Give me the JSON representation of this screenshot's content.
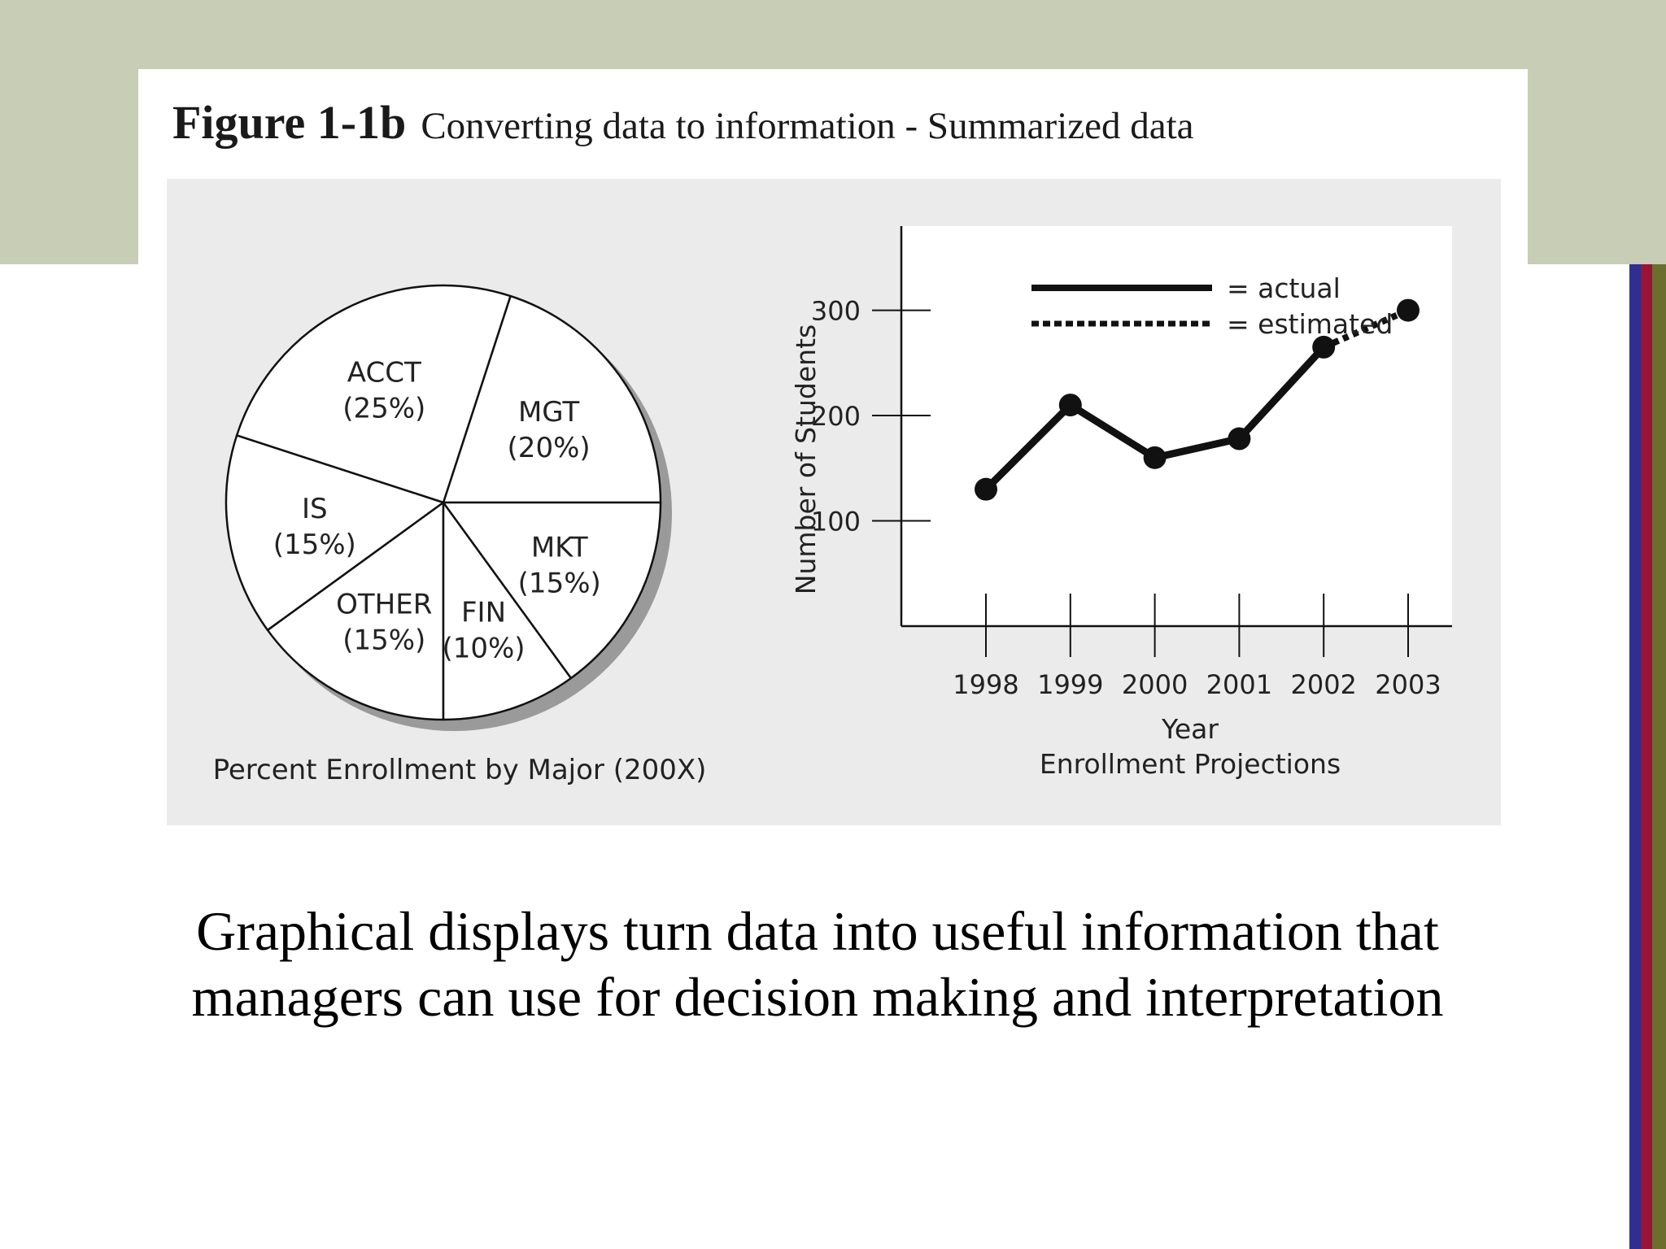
{
  "figure": {
    "number": "Figure 1-1b",
    "caption": "Converting data to information - Summarized data"
  },
  "chart_data": [
    {
      "type": "pie",
      "title": "Percent Enrollment by Major (200X)",
      "slices": [
        {
          "label": "MGT",
          "value_label": "(20%)",
          "value": 20
        },
        {
          "label": "ACCT",
          "value_label": "(25%)",
          "value": 25
        },
        {
          "label": "IS",
          "value_label": "(15%)",
          "value": 15
        },
        {
          "label": "OTHER",
          "value_label": "(15%)",
          "value": 15
        },
        {
          "label": "FIN",
          "value_label": "(10%)",
          "value": 10
        },
        {
          "label": "MKT",
          "value_label": "(15%)",
          "value": 15
        }
      ]
    },
    {
      "type": "line",
      "title": "Enrollment Projections",
      "xlabel": "Year",
      "ylabel": "Number of Students",
      "x": [
        "1998",
        "1999",
        "2000",
        "2001",
        "2002",
        "2003"
      ],
      "yticks": [
        "100",
        "200",
        "300"
      ],
      "ylim": [
        0,
        380
      ],
      "series": [
        {
          "name": "= actual",
          "style": "solid",
          "x": [
            "1998",
            "1999",
            "2000",
            "2001",
            "2002"
          ],
          "values": [
            130,
            210,
            160,
            178,
            265
          ]
        },
        {
          "name": "= estimated",
          "style": "dotted",
          "x": [
            "2002",
            "2003"
          ],
          "values": [
            265,
            300
          ]
        }
      ],
      "legend_position": "top-right",
      "grid": false
    }
  ],
  "caption": "Graphical displays turn data into useful information that managers can use for decision making and interpretation",
  "colors": {
    "header_band": "#c8cdb5",
    "panel": "#ebebeb",
    "edge_blue": "#2f2f8f",
    "edge_red": "#9b1238",
    "edge_olive": "#6b6e2c",
    "ink": "#111111"
  }
}
